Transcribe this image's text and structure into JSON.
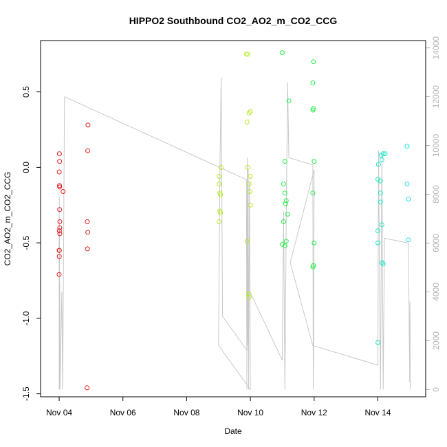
{
  "chart_data": {
    "type": "scatter",
    "title": "HIPPO2 Southbound CO2_AO2_m_CO2_CCG",
    "xlabel": "Date",
    "ylabel": "CO2_AO2_m_CO2_CCG",
    "xlim": [
      "2009-11-03T10:00",
      "2009-11-15T12:00"
    ],
    "ylim": [
      -1.52,
      0.84
    ],
    "x_ticks": [
      {
        "date": "2009-11-04",
        "label": "Nov 04"
      },
      {
        "date": "2009-11-06",
        "label": "Nov 06"
      },
      {
        "date": "2009-11-08",
        "label": "Nov 08"
      },
      {
        "date": "2009-11-10",
        "label": "Nov 10"
      },
      {
        "date": "2009-11-12",
        "label": "Nov 12"
      },
      {
        "date": "2009-11-14",
        "label": "Nov 14"
      }
    ],
    "y_ticks": [
      {
        "value": -1.5,
        "label": "-1.5"
      },
      {
        "value": -1.0,
        "label": "-1.0"
      },
      {
        "value": -0.5,
        "label": "-0.5"
      },
      {
        "value": 0.0,
        "label": "0.0"
      },
      {
        "value": 0.5,
        "label": "0.5"
      }
    ],
    "y2_lim": [
      -300,
      14300
    ],
    "y2_ticks": [
      {
        "value": 0,
        "label": "0"
      },
      {
        "value": 2000,
        "label": "2000"
      },
      {
        "value": 4000,
        "label": "4000"
      },
      {
        "value": 6000,
        "label": "6000"
      },
      {
        "value": 8000,
        "label": "8000"
      },
      {
        "value": 10000,
        "label": "10000"
      },
      {
        "value": 12000,
        "label": "12000"
      },
      {
        "value": 14000,
        "label": "14000"
      }
    ],
    "colors": {
      "series": [
        "#e41a1c",
        "#b5ea2a",
        "#22ee44",
        "#22e6c8"
      ],
      "line": "#c8c8c8",
      "right_axis": "#b3b3b3",
      "frame": "#000000"
    },
    "series": [
      {
        "points": [
          [
            "2009-11-04T00:10",
            0.09
          ],
          [
            "2009-11-04T00:20",
            0.04
          ],
          [
            "2009-11-04T00:05",
            -0.03
          ],
          [
            "2009-11-04T00:15",
            -0.12
          ],
          [
            "2009-11-04T00:25",
            -0.13
          ],
          [
            "2009-11-04T03:00",
            -0.16
          ],
          [
            "2009-11-04T00:20",
            -0.28
          ],
          [
            "2009-11-04T00:30",
            -0.36
          ],
          [
            "2009-11-04T00:25",
            -0.4
          ],
          [
            "2009-11-04T00:10",
            -0.42
          ],
          [
            "2009-11-04T00:30",
            -0.44
          ],
          [
            "2009-11-04T00:00",
            -0.55
          ],
          [
            "2009-11-04T00:08",
            -0.55
          ],
          [
            "2009-11-04T00:05",
            -0.59
          ],
          [
            "2009-11-04T00:00",
            -0.71
          ],
          [
            "2009-11-04T21:40",
            0.28
          ],
          [
            "2009-11-04T21:30",
            0.11
          ],
          [
            "2009-11-04T21:10",
            -0.36
          ],
          [
            "2009-11-04T21:30",
            -0.43
          ],
          [
            "2009-11-04T21:20",
            -0.54
          ],
          [
            "2009-11-04T21:00",
            -1.46
          ]
        ]
      },
      {
        "points": [
          [
            "2009-11-09T21:00",
            0.75
          ],
          [
            "2009-11-09T22:00",
            0.75
          ],
          [
            "2009-11-10T00:00",
            0.37
          ],
          [
            "2009-11-09T23:00",
            0.36
          ],
          [
            "2009-11-09T21:30",
            0.3
          ],
          [
            "2009-11-09T02:00",
            0.0
          ],
          [
            "2009-11-09T22:00",
            0.0
          ],
          [
            "2009-11-10T00:00",
            -0.06
          ],
          [
            "2009-11-09T00:30",
            -0.06
          ],
          [
            "2009-11-09T23:00",
            -0.11
          ],
          [
            "2009-11-09T00:30",
            -0.11
          ],
          [
            "2009-11-09T23:30",
            -0.16
          ],
          [
            "2009-11-09T01:00",
            -0.17
          ],
          [
            "2009-11-09T01:30",
            -0.18
          ],
          [
            "2009-11-10T00:00",
            -0.25
          ],
          [
            "2009-11-09T01:00",
            -0.29
          ],
          [
            "2009-11-09T01:30",
            -0.3
          ],
          [
            "2009-11-09T00:30",
            -0.36
          ],
          [
            "2009-11-09T21:30",
            -0.49
          ],
          [
            "2009-11-09T22:30",
            -0.84
          ],
          [
            "2009-11-09T23:00",
            -0.86
          ]
        ]
      },
      {
        "points": [
          [
            "2009-11-11T00:00",
            0.76
          ],
          [
            "2009-11-11T23:30",
            0.7
          ],
          [
            "2009-11-11T23:00",
            0.56
          ],
          [
            "2009-11-11T05:00",
            0.44
          ],
          [
            "2009-11-11T23:30",
            0.39
          ],
          [
            "2009-11-11T23:00",
            0.38
          ],
          [
            "2009-11-11T02:00",
            0.04
          ],
          [
            "2009-11-12T00:00",
            0.04
          ],
          [
            "2009-11-11T01:00",
            -0.11
          ],
          [
            "2009-11-11T02:00",
            -0.17
          ],
          [
            "2009-11-11T23:00",
            -0.17
          ],
          [
            "2009-11-11T03:00",
            -0.22
          ],
          [
            "2009-11-11T02:30",
            -0.24
          ],
          [
            "2009-11-11T04:00",
            -0.31
          ],
          [
            "2009-11-11T01:00",
            -0.36
          ],
          [
            "2009-11-11T03:00",
            -0.49
          ],
          [
            "2009-11-12T00:00",
            -0.5
          ],
          [
            "2009-11-11T00:00",
            -0.51
          ],
          [
            "2009-11-11T02:00",
            -0.52
          ],
          [
            "2009-11-11T23:30",
            -0.65
          ],
          [
            "2009-11-11T23:00",
            -0.66
          ]
        ]
      },
      {
        "points": [
          [
            "2009-11-14T04:00",
            0.09
          ],
          [
            "2009-11-14T05:30",
            0.09
          ],
          [
            "2009-11-14T02:30",
            0.08
          ],
          [
            "2009-11-14T03:00",
            0.05
          ],
          [
            "2009-11-14T00:30",
            0.02
          ],
          [
            "2009-11-14T22:00",
            0.14
          ],
          [
            "2009-11-14T00:00",
            -0.08
          ],
          [
            "2009-11-14T02:00",
            -0.09
          ],
          [
            "2009-11-14T22:00",
            -0.11
          ],
          [
            "2009-11-14T02:00",
            -0.17
          ],
          [
            "2009-11-14T23:00",
            -0.21
          ],
          [
            "2009-11-14T02:00",
            -0.23
          ],
          [
            "2009-11-14T03:00",
            -0.38
          ],
          [
            "2009-11-14T00:00",
            -0.42
          ],
          [
            "2009-11-14T23:00",
            -0.48
          ],
          [
            "2009-11-14T00:00",
            -0.5
          ],
          [
            "2009-11-14T03:00",
            -0.63
          ],
          [
            "2009-11-14T04:00",
            -0.64
          ],
          [
            "2009-11-14T00:00",
            -1.16
          ]
        ]
      }
    ],
    "line_series": {
      "axis": "right",
      "points": [
        [
          "2009-11-04T00:00",
          6500
        ],
        [
          "2009-11-04T00:02",
          0
        ],
        [
          "2009-11-04T00:04",
          7900
        ],
        [
          "2009-11-04T00:08",
          500
        ],
        [
          "2009-11-04T00:15",
          6800
        ],
        [
          "2009-11-04T00:22",
          0
        ],
        [
          "2009-11-04T00:28",
          4400
        ],
        [
          "2009-11-04T00:35",
          0
        ],
        [
          "2009-11-04T02:00",
          4000
        ],
        [
          "2009-11-04T02:40",
          0
        ],
        [
          "2009-11-04T04:00",
          12000
        ],
        [
          "2009-11-09T21:00",
          8600
        ],
        [
          "2009-11-09T21:20",
          0
        ],
        [
          "2009-11-09T21:40",
          9500
        ],
        [
          "2009-11-09T22:00",
          1800
        ],
        [
          "2009-11-09T22:20",
          9000
        ],
        [
          "2009-11-09T22:40",
          0
        ],
        [
          "2009-11-09T23:20",
          8500
        ],
        [
          "2009-11-10T00:00",
          0
        ],
        [
          "2009-11-09T00:00",
          1800
        ],
        [
          "2009-11-09T01:00",
          8800
        ],
        [
          "2009-11-09T02:00",
          12800
        ],
        [
          "2009-11-09T03:00",
          3000
        ],
        [
          "2009-11-09T21:30",
          1600
        ],
        [
          "2009-11-09T22:00",
          4200
        ],
        [
          "2009-11-11T00:00",
          1200
        ],
        [
          "2009-11-11T01:00",
          7300
        ],
        [
          "2009-11-11T02:00",
          0
        ],
        [
          "2009-11-11T03:00",
          6800
        ],
        [
          "2009-11-11T04:00",
          12600
        ],
        [
          "2009-11-11T05:00",
          9500
        ],
        [
          "2009-11-11T23:00",
          9200
        ],
        [
          "2009-11-11T23:20",
          0
        ],
        [
          "2009-11-11T23:40",
          2100
        ],
        [
          "2009-11-12T00:00",
          9000
        ],
        [
          "2009-11-11T06:00",
          5200
        ],
        [
          "2009-11-11T23:00",
          1800
        ],
        [
          "2009-11-14T00:00",
          1000
        ],
        [
          "2009-11-14T00:30",
          9800
        ],
        [
          "2009-11-14T02:00",
          0
        ],
        [
          "2009-11-14T03:00",
          9700
        ],
        [
          "2009-11-14T04:00",
          0
        ],
        [
          "2009-11-14T05:00",
          6200
        ],
        [
          "2009-11-14T23:00",
          6000
        ],
        [
          "2009-11-15T00:00",
          300
        ],
        [
          "2009-11-15T00:10",
          3600
        ],
        [
          "2009-11-15T00:20",
          0
        ]
      ]
    }
  }
}
